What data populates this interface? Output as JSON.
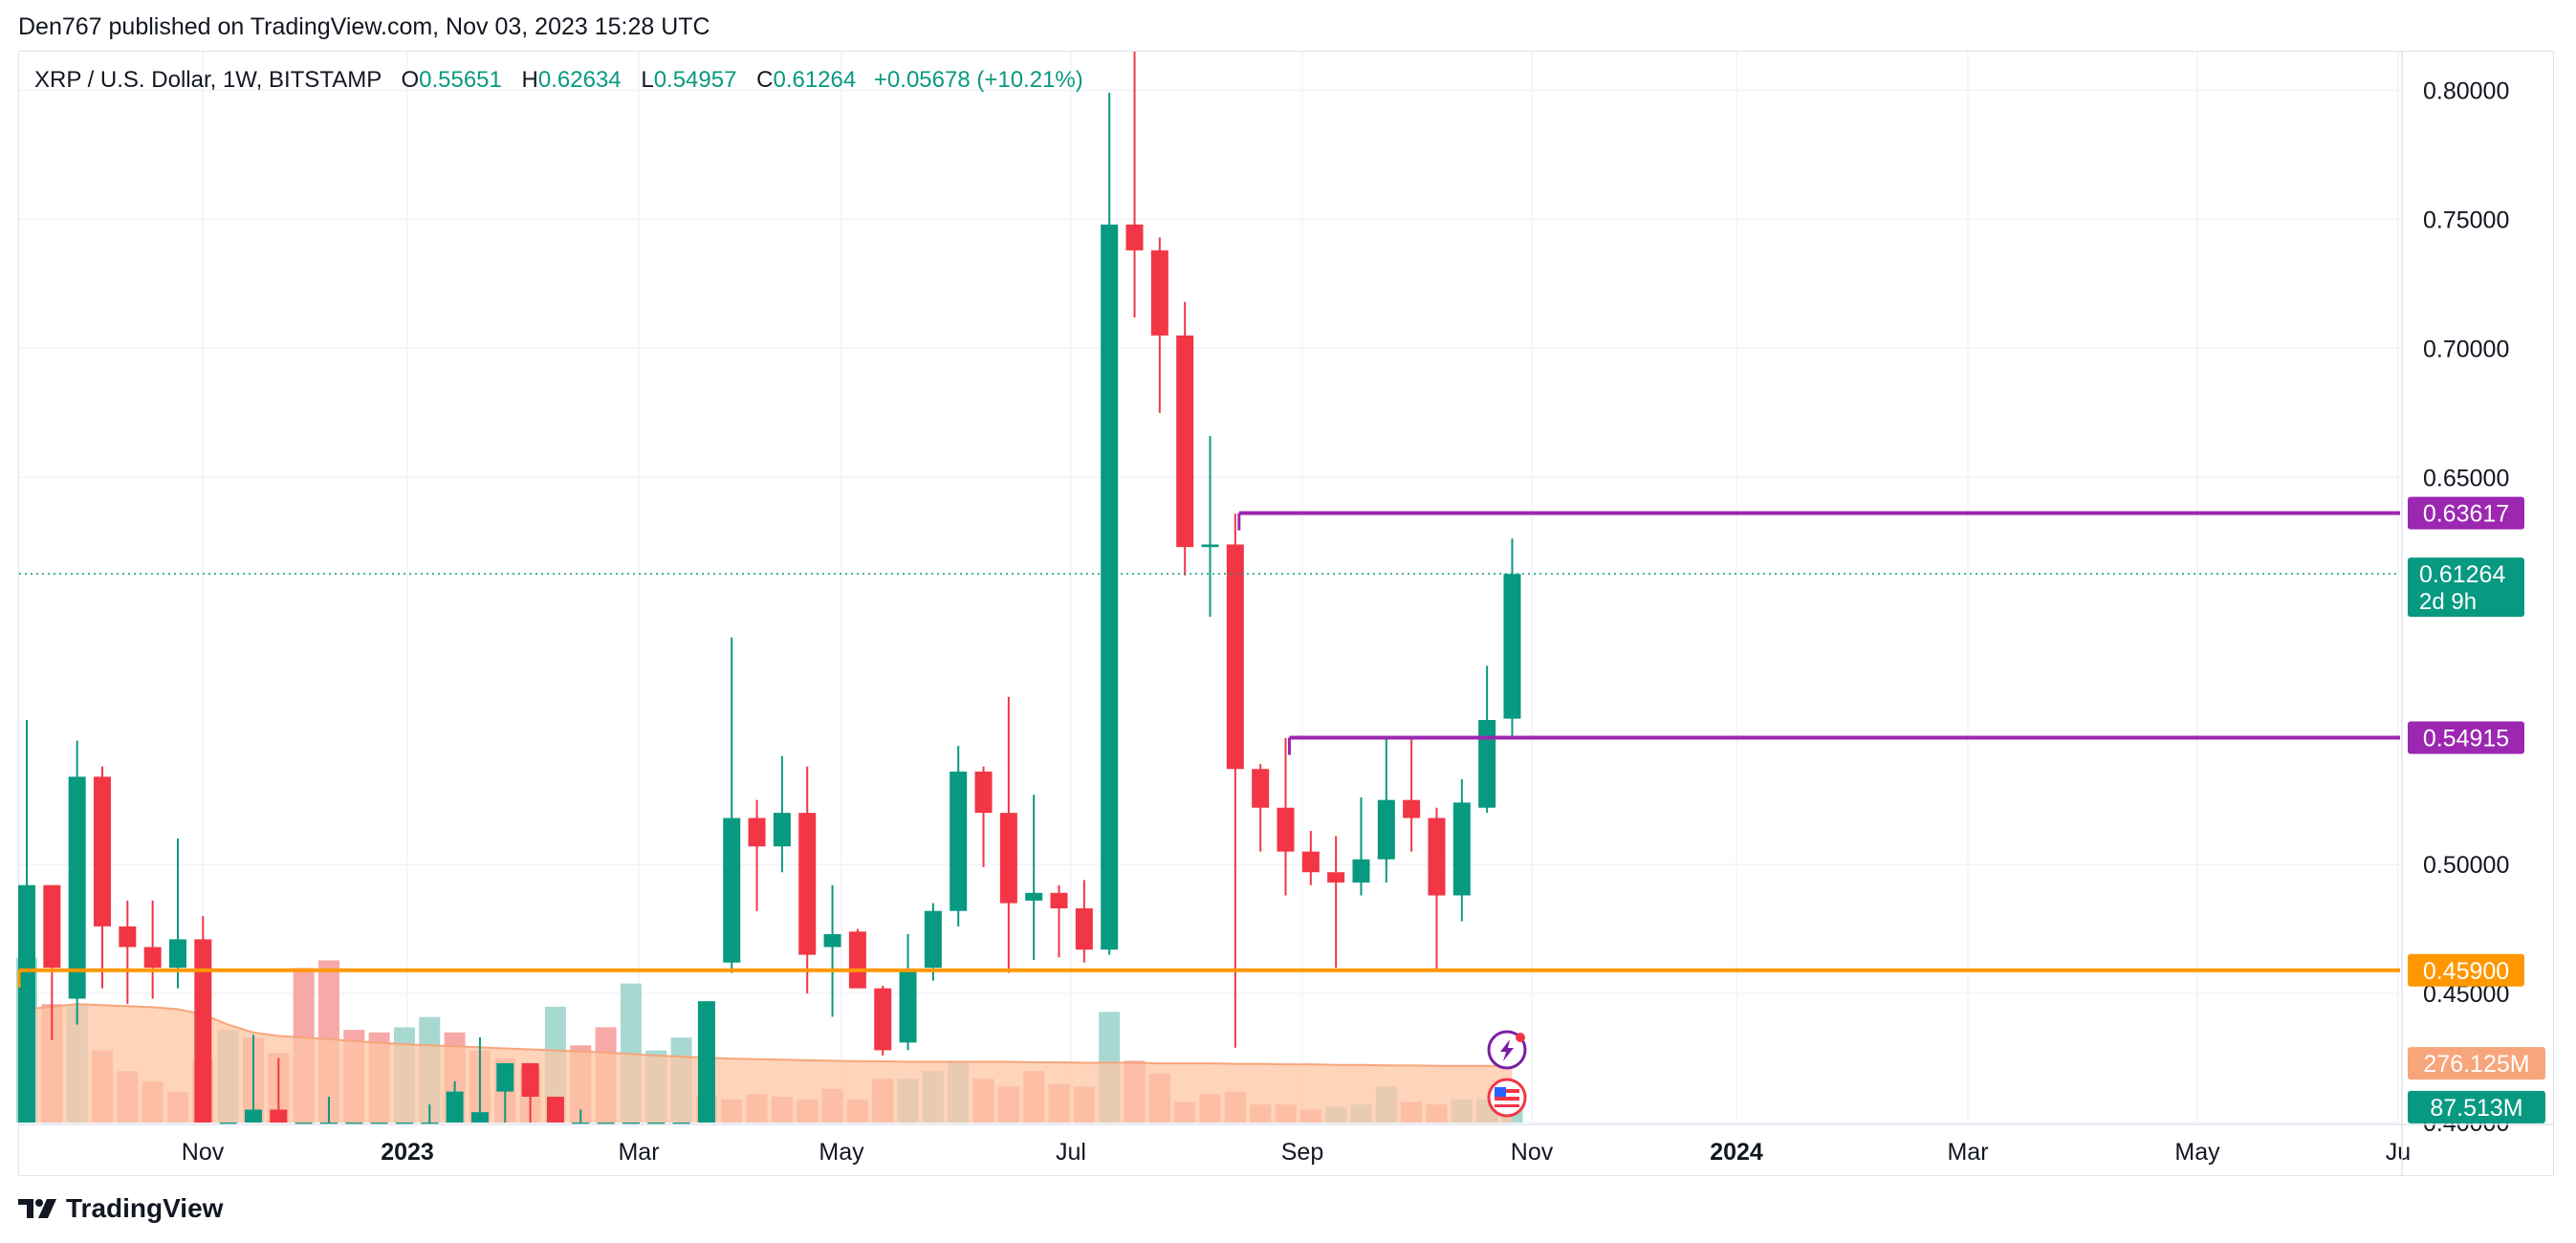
{
  "header": {
    "publisher_line": "Den767 published on TradingView.com, Nov 03, 2023 15:28 UTC"
  },
  "legend": {
    "symbol": "XRP / U.S. Dollar, 1W, BITSTAMP",
    "o_label": "O",
    "o_value": "0.55651",
    "h_label": "H",
    "h_value": "0.62634",
    "l_label": "L",
    "l_value": "0.54957",
    "c_label": "C",
    "c_value": "0.61264",
    "change": "+0.05678 (+10.21%)"
  },
  "footer": {
    "brand": "TradingView"
  },
  "colors": {
    "up": "#089981",
    "down": "#f23645",
    "vol_up": "#a8d9d1",
    "vol_down": "#f7a9a7",
    "vol_avg_fill": "#fdc6a4",
    "vol_avg_line": "#f7a57a",
    "level_purple": "#9c27b0",
    "level_orange": "#ff9800",
    "grid": "#f0f3fa",
    "axis_text": "#131722"
  },
  "chart_data": {
    "type": "candlestick",
    "interval": "1W",
    "y_range": [
      0.4,
      0.815
    ],
    "y_ticks": [
      "0.80000",
      "0.75000",
      "0.70000",
      "0.65000",
      "0.50000",
      "0.45000",
      "0.40000"
    ],
    "x_ticks": [
      {
        "label": "Nov",
        "bold": false
      },
      {
        "label": "2023",
        "bold": true
      },
      {
        "label": "Mar",
        "bold": false
      },
      {
        "label": "May",
        "bold": false
      },
      {
        "label": "Jul",
        "bold": false
      },
      {
        "label": "Sep",
        "bold": false
      },
      {
        "label": "Nov",
        "bold": false
      },
      {
        "label": "2024",
        "bold": true
      },
      {
        "label": "Mar",
        "bold": false
      },
      {
        "label": "May",
        "bold": false
      },
      {
        "label": "Ju",
        "bold": false
      }
    ],
    "candles": [
      {
        "o": 0.4,
        "h": 0.556,
        "l": 0.4,
        "c": 0.492
      },
      {
        "o": 0.492,
        "h": 0.492,
        "l": 0.432,
        "c": 0.46
      },
      {
        "o": 0.448,
        "h": 0.548,
        "l": 0.438,
        "c": 0.534
      },
      {
        "o": 0.534,
        "h": 0.538,
        "l": 0.452,
        "c": 0.476
      },
      {
        "o": 0.476,
        "h": 0.486,
        "l": 0.446,
        "c": 0.468
      },
      {
        "o": 0.468,
        "h": 0.486,
        "l": 0.448,
        "c": 0.46
      },
      {
        "o": 0.46,
        "h": 0.51,
        "l": 0.452,
        "c": 0.471
      },
      {
        "o": 0.471,
        "h": 0.48,
        "l": 0.4,
        "c": 0.4
      },
      {
        "o": 0.4,
        "h": 0.4,
        "l": 0.4,
        "c": 0.4
      },
      {
        "o": 0.4,
        "h": 0.434,
        "l": 0.4,
        "c": 0.405
      },
      {
        "o": 0.405,
        "h": 0.425,
        "l": 0.4,
        "c": 0.4
      },
      {
        "o": 0.4,
        "h": 0.4,
        "l": 0.4,
        "c": 0.4
      },
      {
        "o": 0.4,
        "h": 0.41,
        "l": 0.4,
        "c": 0.4
      },
      {
        "o": 0.4,
        "h": 0.4,
        "l": 0.4,
        "c": 0.4
      },
      {
        "o": 0.4,
        "h": 0.4,
        "l": 0.4,
        "c": 0.4
      },
      {
        "o": 0.4,
        "h": 0.4,
        "l": 0.4,
        "c": 0.4
      },
      {
        "o": 0.4,
        "h": 0.407,
        "l": 0.4,
        "c": 0.4
      },
      {
        "o": 0.4,
        "h": 0.416,
        "l": 0.4,
        "c": 0.412
      },
      {
        "o": 0.4,
        "h": 0.433,
        "l": 0.4,
        "c": 0.404
      },
      {
        "o": 0.412,
        "h": 0.423,
        "l": 0.4,
        "c": 0.423
      },
      {
        "o": 0.423,
        "h": 0.423,
        "l": 0.4,
        "c": 0.41
      },
      {
        "o": 0.41,
        "h": 0.41,
        "l": 0.4,
        "c": 0.4
      },
      {
        "o": 0.4,
        "h": 0.405,
        "l": 0.4,
        "c": 0.4
      },
      {
        "o": 0.4,
        "h": 0.4,
        "l": 0.4,
        "c": 0.4
      },
      {
        "o": 0.4,
        "h": 0.4,
        "l": 0.4,
        "c": 0.4
      },
      {
        "o": 0.4,
        "h": 0.4,
        "l": 0.4,
        "c": 0.4
      },
      {
        "o": 0.4,
        "h": 0.4,
        "l": 0.4,
        "c": 0.4
      },
      {
        "o": 0.4,
        "h": 0.447,
        "l": 0.4,
        "c": 0.447
      },
      {
        "o": 0.462,
        "h": 0.588,
        "l": 0.458,
        "c": 0.518
      },
      {
        "o": 0.518,
        "h": 0.525,
        "l": 0.482,
        "c": 0.507
      },
      {
        "o": 0.507,
        "h": 0.542,
        "l": 0.497,
        "c": 0.52
      },
      {
        "o": 0.52,
        "h": 0.538,
        "l": 0.45,
        "c": 0.465
      },
      {
        "o": 0.468,
        "h": 0.492,
        "l": 0.441,
        "c": 0.473
      },
      {
        "o": 0.474,
        "h": 0.475,
        "l": 0.456,
        "c": 0.452
      },
      {
        "o": 0.452,
        "h": 0.453,
        "l": 0.426,
        "c": 0.428
      },
      {
        "o": 0.431,
        "h": 0.473,
        "l": 0.428,
        "c": 0.459
      },
      {
        "o": 0.46,
        "h": 0.485,
        "l": 0.455,
        "c": 0.482
      },
      {
        "o": 0.482,
        "h": 0.546,
        "l": 0.476,
        "c": 0.536
      },
      {
        "o": 0.536,
        "h": 0.538,
        "l": 0.499,
        "c": 0.52
      },
      {
        "o": 0.52,
        "h": 0.565,
        "l": 0.458,
        "c": 0.485
      },
      {
        "o": 0.486,
        "h": 0.527,
        "l": 0.463,
        "c": 0.489
      },
      {
        "o": 0.489,
        "h": 0.492,
        "l": 0.464,
        "c": 0.483
      },
      {
        "o": 0.483,
        "h": 0.494,
        "l": 0.462,
        "c": 0.467
      },
      {
        "o": 0.467,
        "h": 0.799,
        "l": 0.465,
        "c": 0.748
      },
      {
        "o": 0.748,
        "h": 0.815,
        "l": 0.712,
        "c": 0.738
      },
      {
        "o": 0.738,
        "h": 0.743,
        "l": 0.675,
        "c": 0.705
      },
      {
        "o": 0.705,
        "h": 0.718,
        "l": 0.612,
        "c": 0.623
      },
      {
        "o": 0.623,
        "h": 0.666,
        "l": 0.596,
        "c": 0.624
      },
      {
        "o": 0.624,
        "h": 0.636,
        "l": 0.429,
        "c": 0.537
      },
      {
        "o": 0.537,
        "h": 0.539,
        "l": 0.505,
        "c": 0.522
      },
      {
        "o": 0.522,
        "h": 0.549,
        "l": 0.488,
        "c": 0.505
      },
      {
        "o": 0.505,
        "h": 0.513,
        "l": 0.492,
        "c": 0.497
      },
      {
        "o": 0.497,
        "h": 0.511,
        "l": 0.46,
        "c": 0.493
      },
      {
        "o": 0.493,
        "h": 0.526,
        "l": 0.488,
        "c": 0.502
      },
      {
        "o": 0.502,
        "h": 0.549,
        "l": 0.493,
        "c": 0.525
      },
      {
        "o": 0.525,
        "h": 0.549,
        "l": 0.505,
        "c": 0.518
      },
      {
        "o": 0.518,
        "h": 0.522,
        "l": 0.459,
        "c": 0.488
      },
      {
        "o": 0.488,
        "h": 0.533,
        "l": 0.478,
        "c": 0.524
      },
      {
        "o": 0.522,
        "h": 0.577,
        "l": 0.52,
        "c": 0.556
      },
      {
        "o": 0.5565,
        "h": 0.6263,
        "l": 0.5496,
        "c": 0.6126
      }
    ],
    "volume_scale_max": 325,
    "volume": [
      {
        "v": 320,
        "up": true
      },
      {
        "v": 230,
        "up": false
      },
      {
        "v": 230,
        "up": true
      },
      {
        "v": 140,
        "up": false
      },
      {
        "v": 100,
        "up": false
      },
      {
        "v": 80,
        "up": false
      },
      {
        "v": 60,
        "up": false
      },
      {
        "v": 120,
        "up": false
      },
      {
        "v": 180,
        "up": true
      },
      {
        "v": 165,
        "up": false
      },
      {
        "v": 135,
        "up": false
      },
      {
        "v": 300,
        "up": false
      },
      {
        "v": 315,
        "up": false
      },
      {
        "v": 180,
        "up": false
      },
      {
        "v": 175,
        "up": false
      },
      {
        "v": 185,
        "up": true
      },
      {
        "v": 205,
        "up": true
      },
      {
        "v": 175,
        "up": false
      },
      {
        "v": 140,
        "up": false
      },
      {
        "v": 125,
        "up": false
      },
      {
        "v": 105,
        "up": false
      },
      {
        "v": 225,
        "up": true
      },
      {
        "v": 150,
        "up": false
      },
      {
        "v": 185,
        "up": false
      },
      {
        "v": 270,
        "up": true
      },
      {
        "v": 140,
        "up": true
      },
      {
        "v": 165,
        "up": true
      },
      {
        "v": 50,
        "up": false
      },
      {
        "v": 45,
        "up": false
      },
      {
        "v": 55,
        "up": false
      },
      {
        "v": 50,
        "up": false
      },
      {
        "v": 45,
        "up": false
      },
      {
        "v": 65,
        "up": false
      },
      {
        "v": 45,
        "up": false
      },
      {
        "v": 85,
        "up": false
      },
      {
        "v": 85,
        "up": true
      },
      {
        "v": 100,
        "up": true
      },
      {
        "v": 120,
        "up": true
      },
      {
        "v": 85,
        "up": false
      },
      {
        "v": 70,
        "up": false
      },
      {
        "v": 100,
        "up": false
      },
      {
        "v": 75,
        "up": false
      },
      {
        "v": 70,
        "up": false
      },
      {
        "v": 215,
        "up": true
      },
      {
        "v": 120,
        "up": false
      },
      {
        "v": 95,
        "up": false
      },
      {
        "v": 40,
        "up": false
      },
      {
        "v": 55,
        "up": false
      },
      {
        "v": 60,
        "up": false
      },
      {
        "v": 35,
        "up": false
      },
      {
        "v": 35,
        "up": false
      },
      {
        "v": 25,
        "up": false
      },
      {
        "v": 30,
        "up": true
      },
      {
        "v": 35,
        "up": true
      },
      {
        "v": 70,
        "up": true
      },
      {
        "v": 40,
        "up": false
      },
      {
        "v": 35,
        "up": false
      },
      {
        "v": 45,
        "up": true
      },
      {
        "v": 45,
        "up": true
      },
      {
        "v": 60,
        "up": true
      }
    ],
    "volume_avg": [
      220,
      225,
      230,
      228,
      226,
      224,
      220,
      210,
      190,
      175,
      168,
      165,
      162,
      158,
      155,
      152,
      150,
      148,
      146,
      144,
      142,
      140,
      138,
      136,
      133,
      130,
      128,
      126,
      124,
      123,
      122,
      121,
      120,
      119,
      119,
      118,
      118,
      118,
      118,
      118,
      117,
      117,
      116,
      116,
      116,
      115,
      115,
      115,
      114,
      114,
      113,
      113,
      112,
      112,
      111,
      111,
      110,
      110,
      110,
      110
    ],
    "levels": [
      {
        "name": "resistance",
        "price": 0.63617,
        "label": "0.63617",
        "color": "#9c27b0",
        "start_index": 48
      },
      {
        "name": "support",
        "price": 0.54915,
        "label": "0.54915",
        "color": "#9c27b0",
        "start_index": 50
      },
      {
        "name": "support-lower",
        "price": 0.459,
        "label": "0.45900",
        "color": "#ff9800",
        "start_index": 0
      }
    ],
    "last_price": {
      "price": 0.61264,
      "label": "0.61264",
      "countdown": "2d 9h",
      "color": "#089981"
    },
    "volume_labels": [
      {
        "label": "276.125M",
        "color": "#f7a57a",
        "v": 115
      },
      {
        "label": "87.513M",
        "color": "#089981",
        "v": 30
      }
    ]
  }
}
